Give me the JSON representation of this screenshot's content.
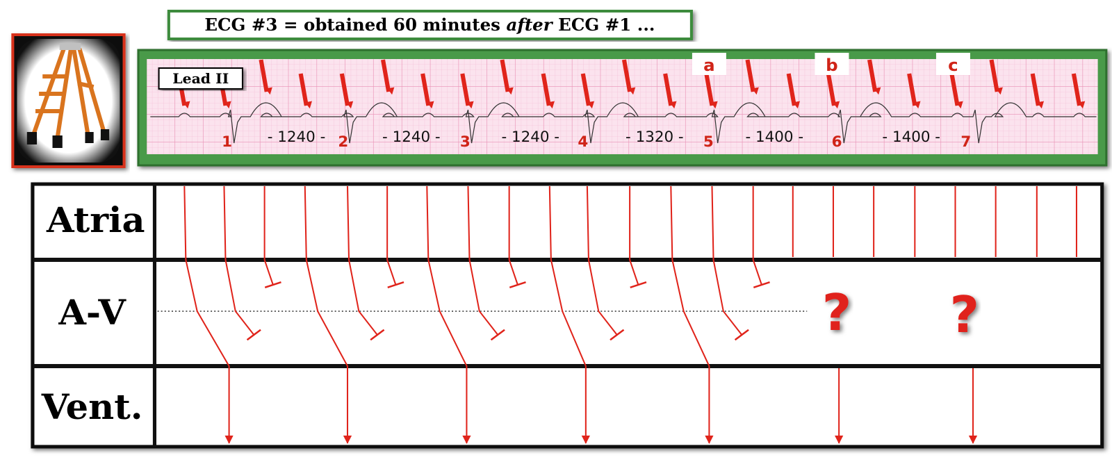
{
  "header": {
    "title": {
      "before": "ECG #3 = obtained 60 minutes ",
      "emphasis": "after",
      "after": " ECG #1 ..."
    }
  },
  "ecg": {
    "lead": "Lead II",
    "beats": [
      "1",
      "2",
      "3",
      "4",
      "5",
      "6",
      "7"
    ],
    "intervals": [
      "- 1240 -",
      "- 1240 -",
      "- 1240 -",
      "- 1320 -",
      "- 1400 -",
      "- 1400 -"
    ],
    "markers": [
      "a",
      "b",
      "c"
    ]
  },
  "ladder": {
    "rows": [
      "Atria",
      "A-V",
      "Vent."
    ],
    "unknowns": [
      "?",
      "?"
    ]
  }
}
